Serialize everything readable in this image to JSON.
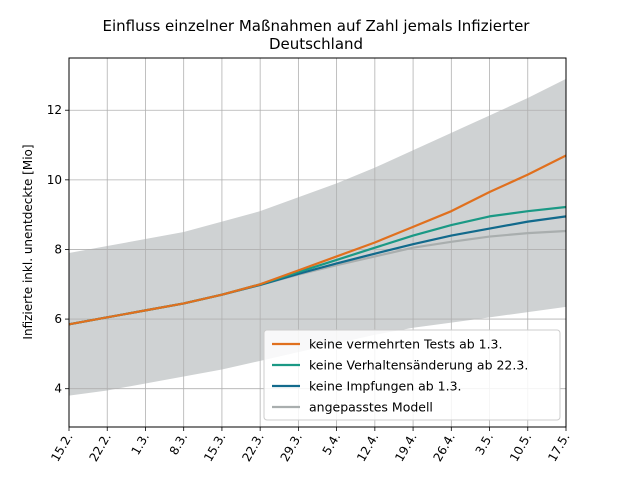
{
  "chart_data": {
    "type": "line",
    "title": "Einfluss einzelner Maßnahmen auf Zahl jemals Infizierter",
    "subtitle": "Deutschland",
    "xlabel": "",
    "ylabel": "Infizierte inkl. unentdeckte [Mio]",
    "x": [
      "15.2.",
      "22.2.",
      "1.3.",
      "8.3.",
      "15.3.",
      "22.3.",
      "29.3.",
      "5.4.",
      "12.4.",
      "19.4.",
      "26.4.",
      "3.5.",
      "10.5.",
      "17.5."
    ],
    "xlim": [
      0,
      13
    ],
    "ylim": [
      2.9,
      13.5
    ],
    "yticks": [
      4,
      6,
      8,
      10,
      12
    ],
    "grid": true,
    "legend_position": "lower-right",
    "band": {
      "lower": [
        3.8,
        3.95,
        4.15,
        4.35,
        4.55,
        4.8,
        5.05,
        5.3,
        5.55,
        5.75,
        5.9,
        6.05,
        6.2,
        6.35
      ],
      "upper": [
        7.9,
        8.1,
        8.3,
        8.5,
        8.8,
        9.1,
        9.5,
        9.9,
        10.35,
        10.85,
        11.35,
        11.85,
        12.35,
        12.9
      ],
      "color": "#cfd2d3"
    },
    "series": [
      {
        "name": "keine vermehrten Tests ab 1.3.",
        "color": "#e0701e",
        "values": [
          5.85,
          6.05,
          6.25,
          6.45,
          6.7,
          7.0,
          7.4,
          7.8,
          8.2,
          8.65,
          9.1,
          9.65,
          10.15,
          10.7
        ]
      },
      {
        "name": "keine Verhaltensänderung ab 22.3.",
        "color": "#1b9985",
        "values": [
          5.85,
          6.05,
          6.25,
          6.45,
          6.7,
          7.0,
          7.35,
          7.7,
          8.05,
          8.4,
          8.7,
          8.95,
          9.1,
          9.22
        ]
      },
      {
        "name": "keine Impfungen ab 1.3.",
        "color": "#126a8c",
        "values": [
          5.85,
          6.05,
          6.25,
          6.45,
          6.7,
          6.98,
          7.3,
          7.6,
          7.88,
          8.15,
          8.4,
          8.6,
          8.8,
          8.95
        ]
      },
      {
        "name": "angepasstes Modell",
        "color": "#a9aeae",
        "values": [
          5.85,
          6.05,
          6.25,
          6.45,
          6.7,
          6.98,
          7.28,
          7.55,
          7.8,
          8.05,
          8.22,
          8.37,
          8.47,
          8.53
        ]
      }
    ]
  }
}
